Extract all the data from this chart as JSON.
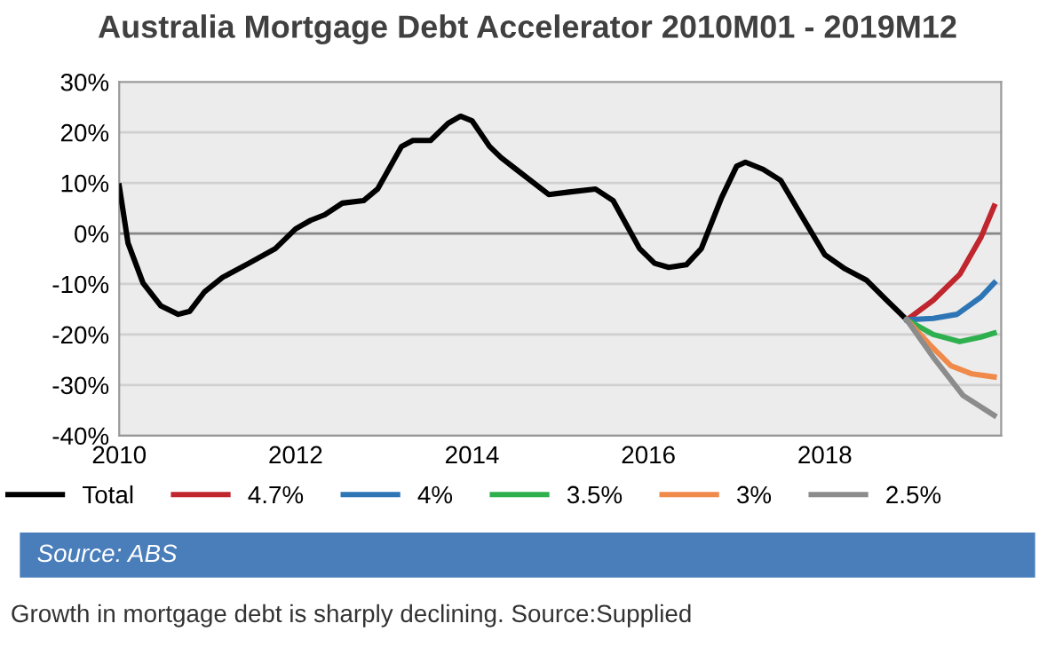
{
  "chart_data": {
    "type": "line",
    "title": "Australia Mortgage Debt Accelerator 2010M01 - 2019M12",
    "xlim": [
      2010,
      2020
    ],
    "xticks": [
      2010,
      2012,
      2014,
      2016,
      2018
    ],
    "ylim": [
      -40,
      30
    ],
    "yticks": [
      {
        "value": -40,
        "label": "-40%"
      },
      {
        "value": -30,
        "label": "-30%"
      },
      {
        "value": -20,
        "label": "-20%"
      },
      {
        "value": -10,
        "label": "-10%"
      },
      {
        "value": 0,
        "label": "0%"
      },
      {
        "value": 10,
        "label": "10%"
      },
      {
        "value": 20,
        "label": "20%"
      },
      {
        "value": 30,
        "label": "30%"
      }
    ],
    "grid": "y",
    "legend": "bottom",
    "marker": "none",
    "line_style": "solid",
    "series": [
      {
        "name": "Total",
        "color": "#000000",
        "x": [
          2010.0,
          2010.1,
          2010.27,
          2010.47,
          2010.67,
          2010.8,
          2010.97,
          2011.17,
          2011.47,
          2011.77,
          2012.0,
          2012.17,
          2012.33,
          2012.53,
          2012.77,
          2012.93,
          2013.2,
          2013.33,
          2013.53,
          2013.73,
          2013.87,
          2014.0,
          2014.2,
          2014.33,
          2014.5,
          2014.87,
          2015.1,
          2015.4,
          2015.6,
          2015.9,
          2016.07,
          2016.23,
          2016.43,
          2016.6,
          2016.83,
          2017.0,
          2017.1,
          2017.3,
          2017.5,
          2017.73,
          2018.0,
          2018.23,
          2018.47,
          2018.7,
          2018.93
        ],
        "values": [
          9.4,
          -1.9,
          -9.8,
          -14.3,
          -16.0,
          -15.4,
          -11.5,
          -8.7,
          -5.9,
          -3.0,
          0.9,
          2.6,
          3.7,
          6.0,
          6.5,
          8.8,
          17.2,
          18.4,
          18.4,
          21.8,
          23.2,
          22.3,
          17.2,
          15.0,
          12.7,
          7.7,
          8.2,
          8.8,
          6.5,
          -3.0,
          -5.9,
          -6.7,
          -6.2,
          -3.0,
          7.1,
          13.3,
          14.1,
          12.7,
          10.5,
          3.7,
          -4.2,
          -7.0,
          -9.2,
          -13.2,
          -17.1
        ]
      },
      {
        "name": "4.7%",
        "color": "#c0262d",
        "x": [
          2018.93,
          2019.23,
          2019.53,
          2019.77,
          2019.92
        ],
        "values": [
          -17.1,
          -13.2,
          -8.1,
          -0.8,
          5.4
        ]
      },
      {
        "name": "4%",
        "color": "#2e75b6",
        "x": [
          2018.93,
          2019.23,
          2019.5,
          2019.77,
          2019.92
        ],
        "values": [
          -17.1,
          -16.8,
          -16.0,
          -12.6,
          -9.8
        ]
      },
      {
        "name": "3.5%",
        "color": "#2eb04f",
        "x": [
          2018.93,
          2019.23,
          2019.53,
          2019.77,
          2019.92
        ],
        "values": [
          -17.1,
          -20.0,
          -21.4,
          -20.5,
          -19.7
        ]
      },
      {
        "name": "3%",
        "color": "#f08a4b",
        "x": [
          2018.93,
          2019.2,
          2019.43,
          2019.67,
          2019.92
        ],
        "values": [
          -17.1,
          -22.2,
          -26.2,
          -27.8,
          -28.4
        ]
      },
      {
        "name": "2.5%",
        "color": "#8c8c8c",
        "x": [
          2018.93,
          2019.23,
          2019.57,
          2019.92
        ],
        "values": [
          -17.1,
          -24.5,
          -32.1,
          -36.0
        ]
      }
    ],
    "annotations": [
      "Source: ABS",
      "Growth in mortgage debt is sharply declining. Source:Supplied"
    ]
  }
}
